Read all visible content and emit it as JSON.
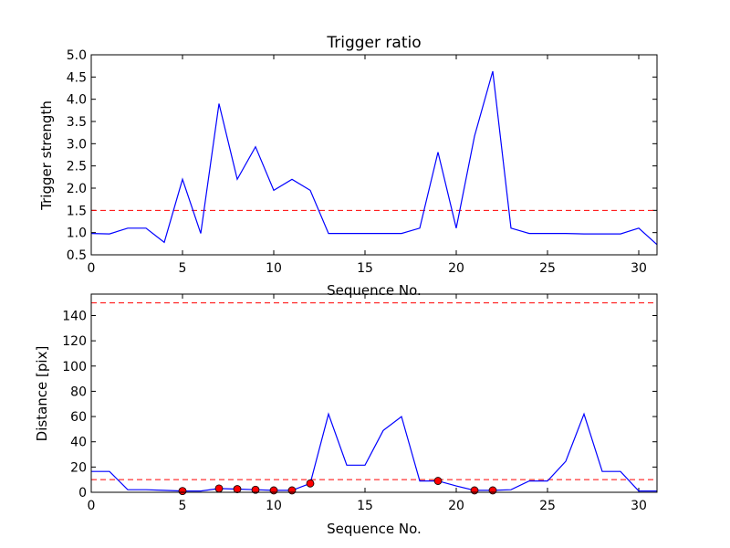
{
  "chart_data": [
    {
      "type": "line",
      "title": "Trigger ratio",
      "xlabel": "Sequence No.",
      "ylabel": "Trigger strength",
      "xlim": [
        0,
        31
      ],
      "ylim": [
        0.5,
        5.0
      ],
      "xticks": [
        "0",
        "5",
        "10",
        "15",
        "20",
        "25",
        "30"
      ],
      "yticks": [
        "0.5",
        "1.0",
        "1.5",
        "2.0",
        "2.5",
        "3.0",
        "3.5",
        "4.0",
        "4.5",
        "5.0"
      ],
      "grid": false,
      "line_color": "#0000ff",
      "x": [
        0,
        1,
        2,
        3,
        4,
        5,
        6,
        7,
        8,
        9,
        10,
        11,
        12,
        13,
        14,
        15,
        16,
        17,
        18,
        19,
        20,
        21,
        22,
        23,
        24,
        25,
        26,
        27,
        28,
        29,
        30,
        31
      ],
      "values": [
        0.98,
        0.97,
        1.1,
        1.1,
        0.78,
        2.2,
        0.98,
        3.9,
        2.2,
        2.93,
        1.95,
        2.2,
        1.95,
        0.98,
        0.98,
        0.98,
        0.98,
        0.98,
        1.1,
        2.81,
        1.1,
        3.17,
        4.63,
        1.1,
        0.98,
        0.98,
        0.98,
        0.97,
        0.97,
        0.97,
        1.1,
        0.73
      ],
      "threshold": {
        "value": 1.5,
        "color": "#ff0000",
        "style": "dashed"
      }
    },
    {
      "type": "line",
      "title": "",
      "xlabel": "Sequence No.",
      "ylabel": "Distance [pix]",
      "xlim": [
        0,
        31
      ],
      "ylim": [
        0,
        157
      ],
      "xticks": [
        "0",
        "5",
        "10",
        "15",
        "20",
        "25",
        "30"
      ],
      "yticks": [
        "0",
        "20",
        "40",
        "60",
        "80",
        "100",
        "120",
        "140"
      ],
      "grid": false,
      "line_color": "#0000ff",
      "x": [
        0,
        1,
        2,
        3,
        4,
        5,
        6,
        7,
        8,
        9,
        10,
        11,
        12,
        13,
        14,
        15,
        16,
        17,
        18,
        19,
        20,
        21,
        22,
        23,
        24,
        25,
        26,
        27,
        28,
        29,
        30,
        31
      ],
      "values": [
        16.5,
        16.5,
        2,
        2,
        1.5,
        1,
        1,
        3,
        2.5,
        2,
        1.5,
        1.5,
        7,
        62,
        21.5,
        21.5,
        49,
        60,
        9,
        9,
        5,
        1.5,
        1.5,
        2,
        9,
        9,
        24.5,
        62,
        16.5,
        16.5,
        1,
        1
      ],
      "thresholds": [
        {
          "value": 150,
          "color": "#ff0000",
          "style": "dashed"
        },
        {
          "value": 10,
          "color": "#ff0000",
          "style": "dashed"
        }
      ],
      "markers": {
        "color": "#ff0000",
        "x": [
          5,
          7,
          8,
          9,
          10,
          11,
          12,
          19,
          21,
          22
        ],
        "y": [
          1,
          3,
          2.5,
          2,
          1.5,
          1.5,
          7,
          9,
          1.5,
          1.5
        ]
      }
    }
  ]
}
